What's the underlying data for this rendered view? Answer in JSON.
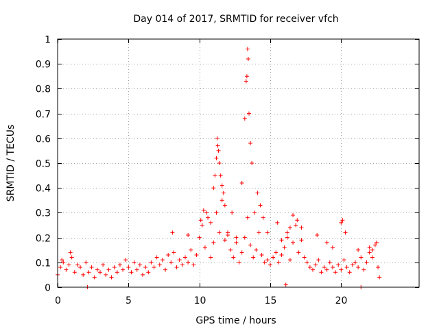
{
  "chart_data": {
    "type": "scatter",
    "title": "Day 014 of 2017, SRMTID for receiver vfch",
    "xlabel": "GPS time / hours",
    "ylabel": "SRMTID / TECUs",
    "xlim": [
      0,
      25.5
    ],
    "ylim": [
      0,
      1
    ],
    "x_ticks": [
      0,
      5,
      10,
      15,
      20
    ],
    "x_tick_labels": [
      "0",
      "5",
      "10",
      "15",
      "20"
    ],
    "y_ticks": [
      0,
      0.1,
      0.2,
      0.3,
      0.4,
      0.5,
      0.6,
      0.7,
      0.8,
      0.9,
      1
    ],
    "y_tick_labels": [
      "0",
      "0.1",
      "0.2",
      "0.3",
      "0.4",
      "0.5",
      "0.6",
      "0.7",
      "0.8",
      "0.9",
      "1"
    ],
    "grid": true,
    "marker": "+",
    "series": [
      {
        "name": "SRMTID",
        "color": "#ff0000",
        "x": [
          0.0,
          0.2,
          0.4,
          0.6,
          0.8,
          1.0,
          1.2,
          1.4,
          1.6,
          1.8,
          2.0,
          2.2,
          2.4,
          2.6,
          2.8,
          3.0,
          3.2,
          3.4,
          3.6,
          3.8,
          4.0,
          4.2,
          4.4,
          4.6,
          4.8,
          5.0,
          5.2,
          5.4,
          5.6,
          5.8,
          6.0,
          6.2,
          6.4,
          6.6,
          6.8,
          7.0,
          7.2,
          7.4,
          7.6,
          7.8,
          8.0,
          8.2,
          8.4,
          8.6,
          8.8,
          9.0,
          9.2,
          9.4,
          9.6,
          9.8,
          10.0,
          10.2,
          10.4,
          10.6,
          10.8,
          11.0,
          11.2,
          11.4,
          11.6,
          11.8,
          12.0,
          12.2,
          12.4,
          12.6,
          12.8,
          13.0,
          13.2,
          13.4,
          13.6,
          13.8,
          14.0,
          14.2,
          14.4,
          14.6,
          14.8,
          15.0,
          15.2,
          15.4,
          15.6,
          15.8,
          16.0,
          16.2,
          16.4,
          16.6,
          16.8,
          17.0,
          17.2,
          17.4,
          17.6,
          17.8,
          18.0,
          18.2,
          18.4,
          18.6,
          18.8,
          19.0,
          19.2,
          19.4,
          19.6,
          19.8,
          20.0,
          20.2,
          20.4,
          20.6,
          20.8,
          21.0,
          21.2,
          21.4,
          21.6,
          21.8,
          22.0,
          22.2,
          22.4,
          22.6,
          22.7,
          8.1,
          9.2,
          10.1,
          10.3,
          10.5,
          10.8,
          11.0,
          11.1,
          11.2,
          11.25,
          11.3,
          11.35,
          11.4,
          11.5,
          11.6,
          11.7,
          11.8,
          12.0,
          12.3,
          12.6,
          13.0,
          13.2,
          13.3,
          13.35,
          13.4,
          13.45,
          13.5,
          13.6,
          13.7,
          13.9,
          14.1,
          14.3,
          14.5,
          14.8,
          15.5,
          15.8,
          16.2,
          16.4,
          16.6,
          16.9,
          17.2,
          18.3,
          19.0,
          19.4,
          20.0,
          20.1,
          20.3,
          21.2,
          22.0,
          22.2,
          22.5,
          2.1,
          16.1,
          21.4,
          0.9,
          0.3
        ],
        "y": [
          0.05,
          0.08,
          0.1,
          0.07,
          0.09,
          0.12,
          0.06,
          0.09,
          0.08,
          0.05,
          0.1,
          0.06,
          0.08,
          0.04,
          0.07,
          0.06,
          0.09,
          0.05,
          0.07,
          0.04,
          0.08,
          0.06,
          0.09,
          0.07,
          0.11,
          0.08,
          0.06,
          0.1,
          0.07,
          0.09,
          0.05,
          0.08,
          0.06,
          0.1,
          0.08,
          0.12,
          0.09,
          0.11,
          0.07,
          0.13,
          0.1,
          0.14,
          0.08,
          0.11,
          0.09,
          0.12,
          0.1,
          0.15,
          0.09,
          0.13,
          0.2,
          0.25,
          0.16,
          0.28,
          0.12,
          0.18,
          0.3,
          0.22,
          0.35,
          0.19,
          0.21,
          0.15,
          0.12,
          0.18,
          0.1,
          0.14,
          0.2,
          0.28,
          0.17,
          0.12,
          0.15,
          0.22,
          0.13,
          0.1,
          0.11,
          0.09,
          0.12,
          0.14,
          0.1,
          0.13,
          0.16,
          0.2,
          0.11,
          0.18,
          0.25,
          0.14,
          0.19,
          0.12,
          0.1,
          0.08,
          0.07,
          0.09,
          0.11,
          0.06,
          0.08,
          0.07,
          0.1,
          0.08,
          0.06,
          0.09,
          0.07,
          0.11,
          0.08,
          0.06,
          0.09,
          0.1,
          0.08,
          0.12,
          0.07,
          0.1,
          0.14,
          0.12,
          0.17,
          0.08,
          0.04,
          0.22,
          0.21,
          0.27,
          0.31,
          0.3,
          0.26,
          0.4,
          0.45,
          0.52,
          0.6,
          0.57,
          0.55,
          0.5,
          0.45,
          0.41,
          0.38,
          0.33,
          0.22,
          0.3,
          0.2,
          0.42,
          0.68,
          0.83,
          0.85,
          0.96,
          0.92,
          0.7,
          0.58,
          0.5,
          0.3,
          0.38,
          0.33,
          0.28,
          0.22,
          0.26,
          0.19,
          0.22,
          0.24,
          0.29,
          0.27,
          0.24,
          0.21,
          0.18,
          0.16,
          0.26,
          0.27,
          0.22,
          0.15,
          0.16,
          0.15,
          0.18,
          0.0,
          0.01,
          0.0,
          0.14,
          0.11
        ]
      }
    ]
  }
}
